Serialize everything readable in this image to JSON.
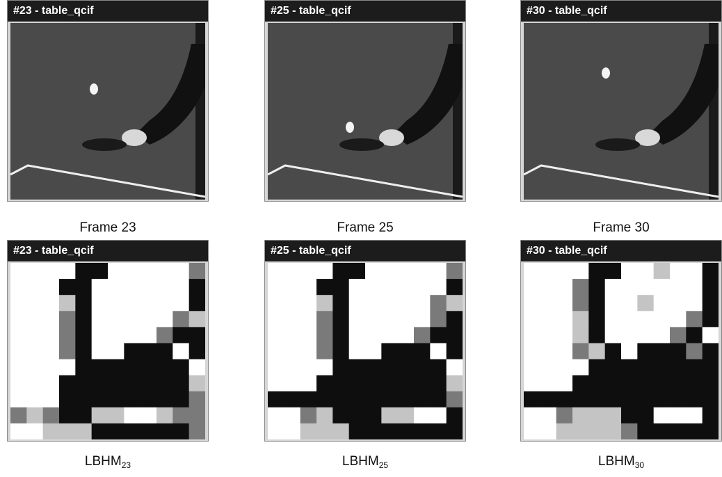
{
  "panels": [
    {
      "title": "#23 - table_qcif",
      "caption": "Frame 23"
    },
    {
      "title": "#25 - table_qcif",
      "caption": "Frame 25"
    },
    {
      "title": "#30 - table_qcif",
      "caption": "Frame 30"
    },
    {
      "title": "#23 - table_qcif",
      "caption": {
        "main": "LBHM",
        "sub": "23"
      }
    },
    {
      "title": "#25 - table_qcif",
      "caption": {
        "main": "LBHM",
        "sub": "25"
      }
    },
    {
      "title": "#30 - table_qcif",
      "caption": {
        "main": "LBHM",
        "sub": "30"
      }
    }
  ]
}
